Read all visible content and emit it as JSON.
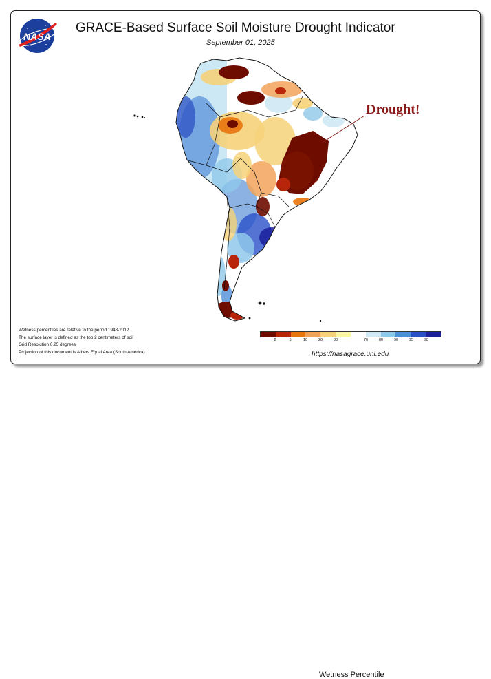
{
  "header": {
    "agency": "NASA",
    "title": "GRACE-Based Surface Soil Moisture Drought Indicator",
    "date": "September 01, 2025"
  },
  "annotation": {
    "text": "Drought!"
  },
  "notes": [
    "Wetness percentiles are relative to the period 1948-2012",
    "The surface layer is defined as the top 2 centimeters of soil",
    "Grid Resolution 0.25 degrees",
    "Projection of this document is Albers Equal Area (South America)"
  ],
  "legend": {
    "label": "Wetness Percentile",
    "ticks": [
      "2",
      "5",
      "10",
      "20",
      "30",
      "70",
      "80",
      "90",
      "95",
      "98"
    ],
    "colors": [
      "#6e0c00",
      "#b8250a",
      "#e8740c",
      "#f2a35a",
      "#f6d27a",
      "#fbf7a3",
      "#ffffff",
      "#cfe9f5",
      "#8fc8ea",
      "#4f8fd8",
      "#2a50c8",
      "#1a1f9a"
    ]
  },
  "source_url": "https://nasagrace.unl.edu"
}
